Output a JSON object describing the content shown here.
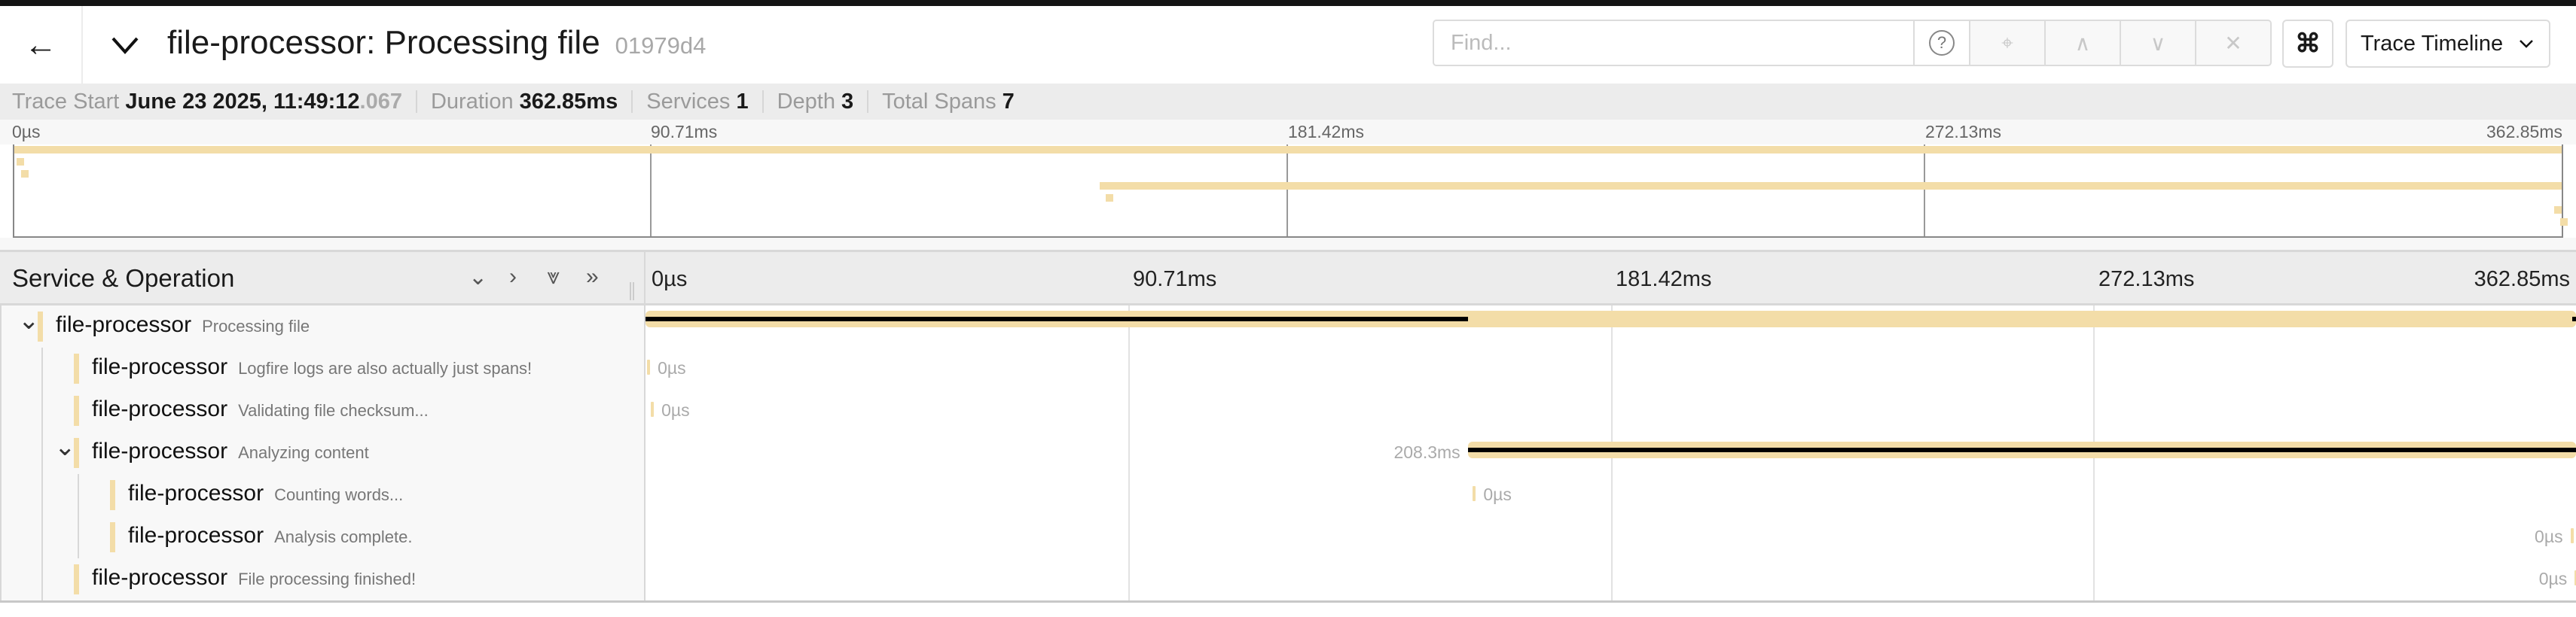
{
  "header": {
    "back_icon": "arrow-left-icon",
    "title": "file-processor: Processing file",
    "trace_id": "01979d4",
    "find_placeholder": "Find...",
    "help_label": "?",
    "locate_label": "⌖",
    "prev_label": "∧",
    "next_label": "∨",
    "clear_label": "✕",
    "cmd_label": "⌘",
    "view_select": "Trace Timeline",
    "chevron": "⌄"
  },
  "info": {
    "trace_start_label": "Trace Start",
    "trace_start": "June 23 2025, 11:49:12",
    "trace_start_ms": ".067",
    "duration_label": "Duration",
    "duration": "362.85ms",
    "services_label": "Services",
    "services": "1",
    "depth_label": "Depth",
    "depth": "3",
    "total_spans_label": "Total Spans",
    "total_spans": "7"
  },
  "tree_header": {
    "title": "Service & Operation",
    "controls": [
      "⌄",
      "›",
      "⩔",
      "»"
    ]
  },
  "ticks": [
    "0µs",
    "90.71ms",
    "181.42ms",
    "272.13ms",
    "362.85ms"
  ],
  "colors": {
    "span": "#f3dda8",
    "critical": "#000000"
  },
  "chart_data": {
    "type": "timeline",
    "xlim": [
      0,
      362.85
    ],
    "unit": "ms",
    "spans": [
      {
        "service": "file-processor",
        "operation": "Processing file",
        "depth": 0,
        "expanded": true,
        "start": 0,
        "duration": 362.85,
        "label": "",
        "critical": [
          [
            0,
            154.55
          ],
          [
            362.2,
            362.85
          ]
        ]
      },
      {
        "service": "file-processor",
        "operation": "Logfire logs are also actually just spans!",
        "depth": 1,
        "start": 0.3,
        "duration": 0,
        "label": "0µs"
      },
      {
        "service": "file-processor",
        "operation": "Validating file checksum...",
        "depth": 1,
        "start": 1.0,
        "duration": 0,
        "label": "0µs"
      },
      {
        "service": "file-processor",
        "operation": "Analyzing content",
        "depth": 1,
        "expanded": true,
        "start": 154.55,
        "duration": 208.3,
        "label": "208.3ms",
        "critical": [
          [
            154.55,
            362.85
          ]
        ]
      },
      {
        "service": "file-processor",
        "operation": "Counting words...",
        "depth": 2,
        "start": 155.5,
        "duration": 0,
        "label": "0µs"
      },
      {
        "service": "file-processor",
        "operation": "Analysis complete.",
        "depth": 2,
        "start": 361.8,
        "duration": 0,
        "label": "0µs"
      },
      {
        "service": "file-processor",
        "operation": "File processing finished!",
        "depth": 1,
        "start": 362.6,
        "duration": 0,
        "label": "0µs"
      }
    ]
  }
}
